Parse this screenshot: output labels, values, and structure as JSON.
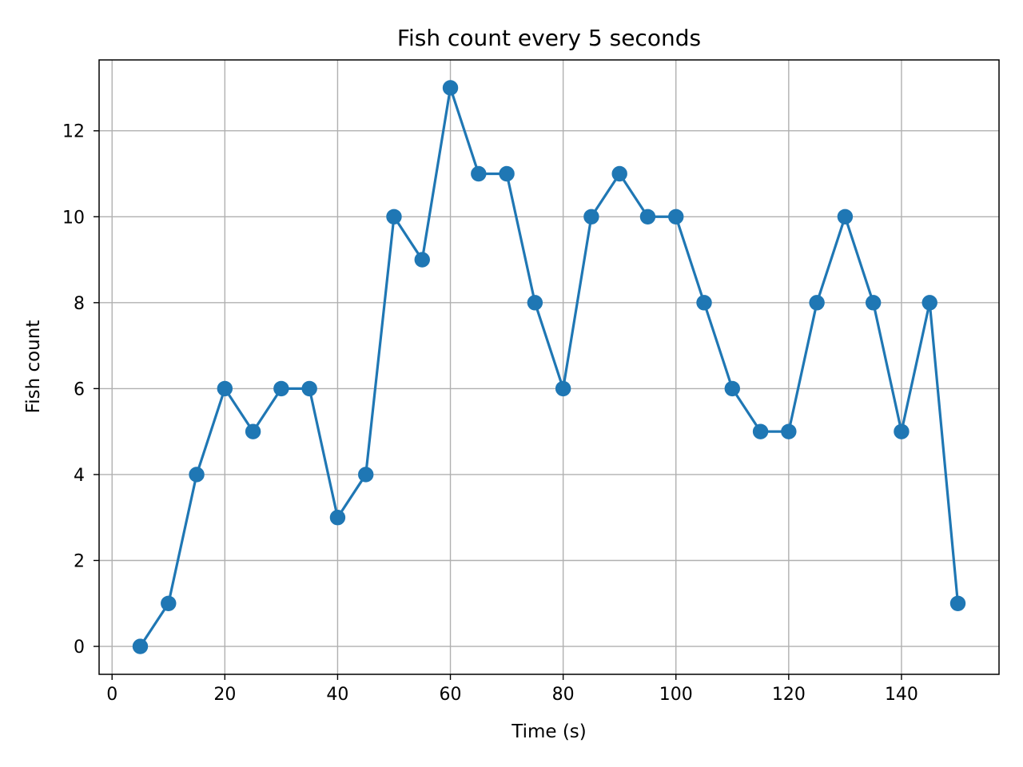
{
  "chart_data": {
    "type": "line",
    "title": "Fish count every 5 seconds",
    "xlabel": "Time (s)",
    "ylabel": "Fish count",
    "xlim": [
      -2.3,
      157.3
    ],
    "ylim": [
      -0.65,
      13.65
    ],
    "xticks": [
      0,
      20,
      40,
      60,
      80,
      100,
      120,
      140
    ],
    "yticks": [
      0,
      2,
      4,
      6,
      8,
      10,
      12
    ],
    "grid": true,
    "series": [
      {
        "color": "#1f77b4",
        "x": [
          5,
          10,
          15,
          20,
          25,
          30,
          35,
          40,
          45,
          50,
          55,
          60,
          65,
          70,
          75,
          80,
          85,
          90,
          95,
          100,
          105,
          110,
          115,
          120,
          125,
          130,
          135,
          140,
          145,
          150
        ],
        "y": [
          0,
          1,
          4,
          6,
          5,
          6,
          6,
          3,
          4,
          10,
          9,
          13,
          11,
          11,
          8,
          6,
          10,
          11,
          10,
          10,
          8,
          6,
          5,
          5,
          8,
          10,
          8,
          5,
          8,
          1
        ]
      }
    ]
  }
}
